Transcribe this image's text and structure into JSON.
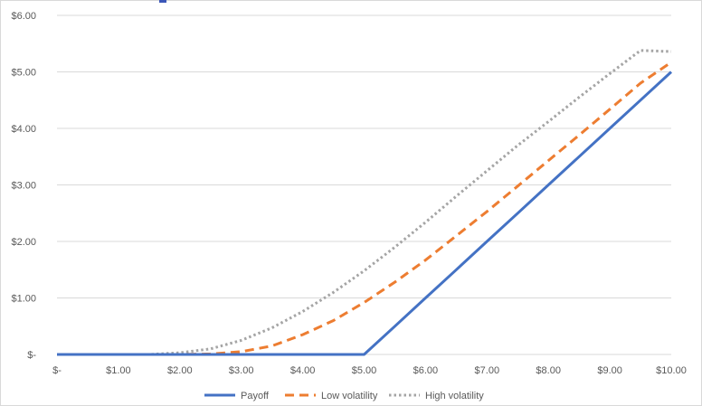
{
  "chart_data": {
    "type": "line",
    "title": "",
    "xlabel": "",
    "ylabel": "",
    "x": [
      0,
      0.5,
      1,
      1.5,
      2,
      2.5,
      3,
      3.5,
      4,
      4.5,
      5,
      5.5,
      6,
      6.5,
      7,
      7.5,
      8,
      8.5,
      9,
      9.5,
      10
    ],
    "xlim": [
      0,
      10
    ],
    "ylim": [
      0,
      6
    ],
    "x_ticks": [
      "$-",
      "$1.00",
      "$2.00",
      "$3.00",
      "$4.00",
      "$5.00",
      "$6.00",
      "$7.00",
      "$8.00",
      "$9.00",
      "$10.00"
    ],
    "y_ticks": [
      "$-",
      "$1.00",
      "$2.00",
      "$3.00",
      "$4.00",
      "$5.00",
      "$6.00"
    ],
    "grid": true,
    "legend_position": "bottom",
    "series": [
      {
        "name": "Payoff",
        "color": "#4472c4",
        "style": "solid",
        "values": [
          0,
          0,
          0,
          0,
          0,
          0,
          0,
          0,
          0,
          0,
          0,
          0.5,
          1.0,
          1.5,
          2.0,
          2.5,
          3.0,
          3.5,
          4.0,
          4.5,
          5.0
        ]
      },
      {
        "name": "Low volatility",
        "color": "#ed7d31",
        "style": "dashed",
        "values": [
          0,
          0,
          0,
          0,
          0,
          0.01,
          0.05,
          0.15,
          0.35,
          0.6,
          0.92,
          1.28,
          1.67,
          2.1,
          2.53,
          2.98,
          3.43,
          3.88,
          4.34,
          4.8,
          5.17
        ]
      },
      {
        "name": "High volatility",
        "color": "#a5a5a5",
        "style": "dotted",
        "values": [
          0,
          0,
          0,
          0,
          0.03,
          0.1,
          0.25,
          0.47,
          0.76,
          1.1,
          1.48,
          1.9,
          2.34,
          2.8,
          3.25,
          3.7,
          4.12,
          4.55,
          4.97,
          5.38,
          5.36
        ]
      }
    ]
  }
}
